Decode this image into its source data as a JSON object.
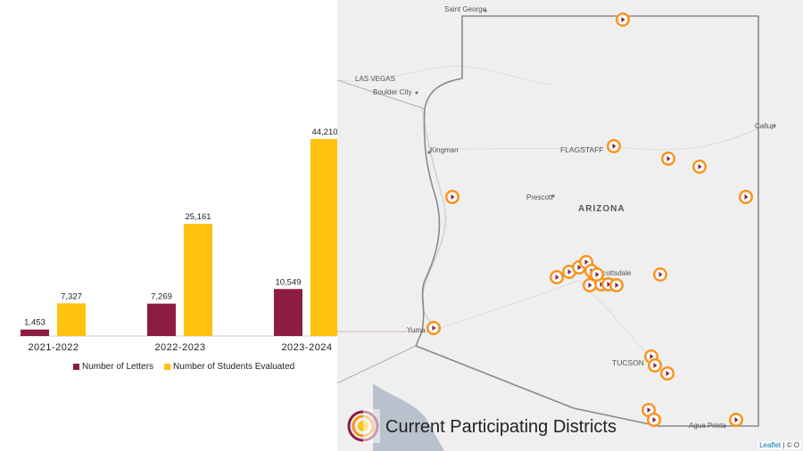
{
  "chart_data": {
    "type": "bar",
    "categories": [
      "2021-2022",
      "2022-2023",
      "2023-2024"
    ],
    "series": [
      {
        "name": "Number of Letters",
        "values": [
          1453,
          7269,
          10549
        ],
        "labels": [
          "1,453",
          "7,269",
          "10,549"
        ],
        "color": "#8c1d40"
      },
      {
        "name": "Number of Students Evaluated",
        "values": [
          7327,
          25161,
          44210
        ],
        "labels": [
          "7,327",
          "25,161",
          "44,210"
        ],
        "color": "#ffc20e"
      }
    ],
    "ylim": [
      0,
      46000
    ],
    "grid": false,
    "legend": "bottom"
  },
  "map": {
    "title": "Current Participating Districts",
    "labels": [
      "Saint George",
      "LAS VEGAS",
      "Boulder City",
      "Kingman",
      "FLAGSTAFF",
      "Callup",
      "Prescott",
      "ARIZONA",
      "Scottsdale",
      "Yuma",
      "TUCSON",
      "Agua Prieta"
    ],
    "marker_color": "#f7941d",
    "attribution_leaflet": "Leaflet",
    "attribution_rest": " | © O"
  }
}
